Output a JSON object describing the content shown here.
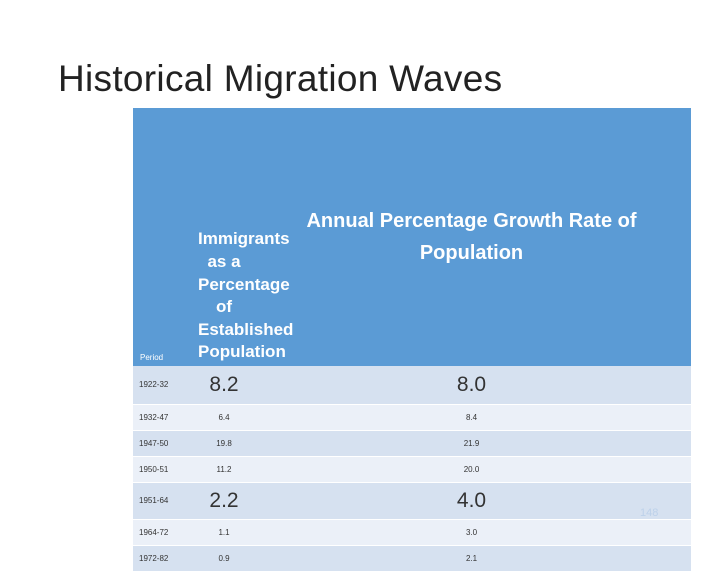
{
  "slide": {
    "title": "Historical Migration Waves",
    "slide_number": "148"
  },
  "table": {
    "headers": {
      "period": "Period",
      "immigrants": "Immigrants as a Percentage of Established Population",
      "growth": "Annual Percentage Growth Rate of Population"
    },
    "rows": [
      {
        "period": "1922-32",
        "immigrants": "8.2",
        "growth": "8.0"
      },
      {
        "period": "1932-47",
        "immigrants": "6.4",
        "growth": "8.4"
      },
      {
        "period": "1947-50",
        "immigrants": "19.8",
        "growth": "21.9"
      },
      {
        "period": "1950-51",
        "immigrants": "11.2",
        "growth": "20.0"
      },
      {
        "period": "1951-64",
        "immigrants": "2.2",
        "growth": "4.0"
      },
      {
        "period": "1964-72",
        "immigrants": "1.1",
        "growth": "3.0"
      },
      {
        "period": "1972-82",
        "immigrants": "0.9",
        "growth": "2.1"
      }
    ]
  },
  "colors": {
    "header_bg": "#5b9bd5",
    "row_dark": "#d6e1f0",
    "row_light": "#ebf0f8"
  }
}
